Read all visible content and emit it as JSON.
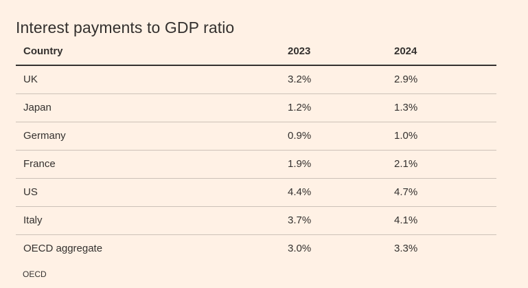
{
  "title": "Interest payments to GDP ratio",
  "table": {
    "headers": [
      "Country",
      "2023",
      "2024"
    ],
    "rows": [
      [
        "UK",
        "3.2%",
        "2.9%"
      ],
      [
        "Japan",
        "1.2%",
        "1.3%"
      ],
      [
        "Germany",
        "0.9%",
        "1.0%"
      ],
      [
        "France",
        "1.9%",
        "2.1%"
      ],
      [
        "US",
        "4.4%",
        "4.7%"
      ],
      [
        "Italy",
        "3.7%",
        "4.1%"
      ],
      [
        "OECD aggregate",
        "3.0%",
        "3.3%"
      ]
    ]
  },
  "source": "OECD"
}
